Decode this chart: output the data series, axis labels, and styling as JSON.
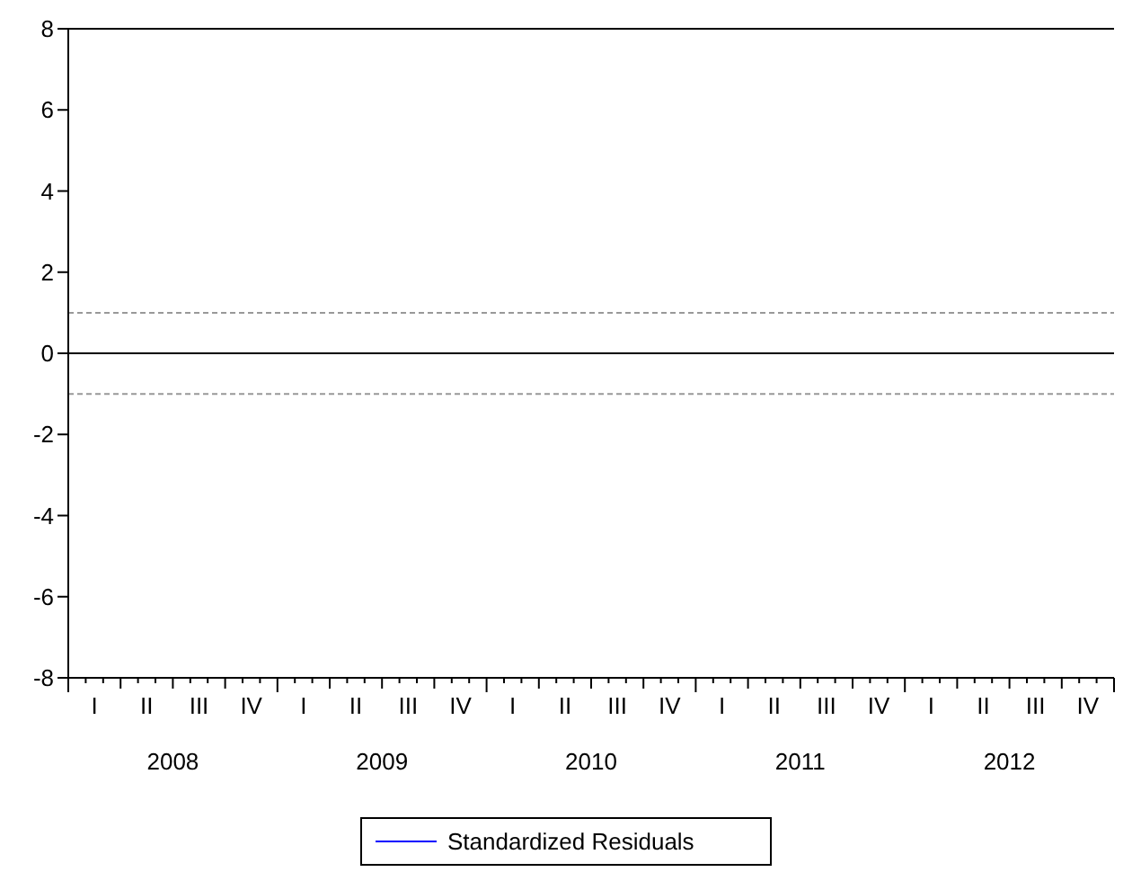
{
  "chart_data": {
    "type": "line",
    "categories": [
      "I",
      "II",
      "III",
      "IV",
      "I",
      "II",
      "III",
      "IV",
      "I",
      "II",
      "III",
      "IV",
      "I",
      "II",
      "III",
      "IV",
      "I",
      "II",
      "III",
      "IV"
    ],
    "series": [
      {
        "name": "Standardized Residuals",
        "color": "#0000ff",
        "values": [
          null,
          null,
          null,
          null,
          null,
          null,
          null,
          null,
          null,
          null,
          null,
          null,
          null,
          null,
          null,
          null,
          null,
          null,
          null,
          null
        ]
      }
    ],
    "ylim": [
      -8,
      8
    ],
    "yticks": [
      -8,
      -6,
      -4,
      -2,
      0,
      2,
      4,
      6,
      8
    ],
    "ref_lines": [
      {
        "axis": "y",
        "value": 1,
        "color": "#999999",
        "line_style": "dashed"
      },
      {
        "axis": "y",
        "value": 0,
        "color": "#000000",
        "line_style": "solid"
      },
      {
        "axis": "y",
        "value": -1,
        "color": "#999999",
        "line_style": "dashed"
      }
    ],
    "annotations": [
      "2008",
      "2009",
      "2010",
      "2011",
      "2012"
    ],
    "legend": "bottom",
    "grid": false
  }
}
